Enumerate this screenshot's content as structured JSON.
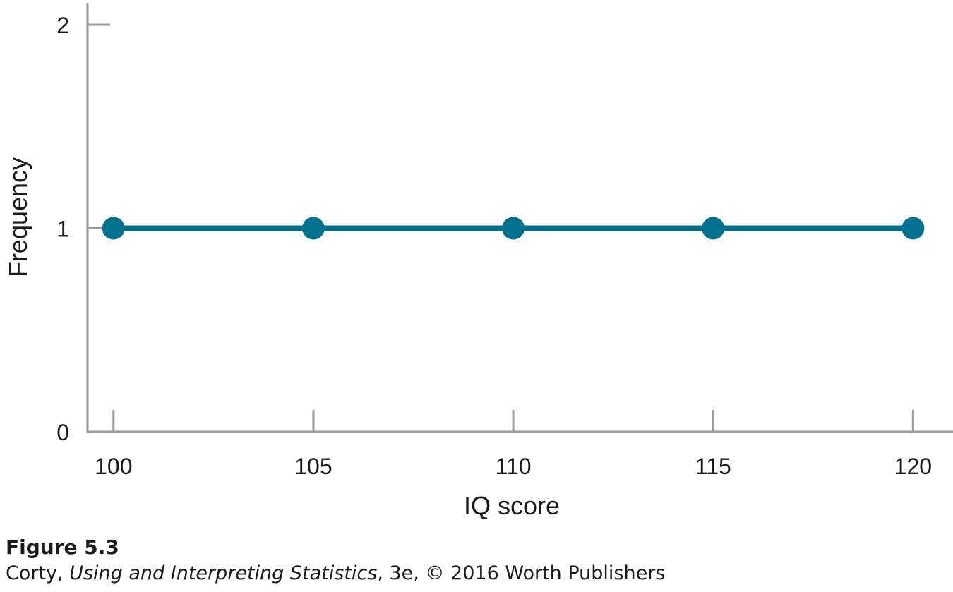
{
  "figure": {
    "label": "Figure 5.3",
    "source_author": "Corty, ",
    "source_book": "Using and Interpreting Statistics",
    "source_rest": ", 3e, © 2016 Worth Publishers"
  },
  "chart_data": {
    "type": "line",
    "x": [
      100,
      105,
      110,
      115,
      120
    ],
    "y": [
      1,
      1,
      1,
      1,
      1
    ],
    "xlabel": "IQ score",
    "ylabel": "Frequency",
    "xticks": [
      100,
      105,
      110,
      115,
      120
    ],
    "yticks": [
      0,
      1,
      2
    ],
    "xlim": [
      99.35,
      121
    ],
    "ylim": [
      0,
      2
    ],
    "grid": false,
    "markers": true,
    "colors": {
      "line": "#00708f",
      "axis": "#9a9a9a"
    }
  }
}
